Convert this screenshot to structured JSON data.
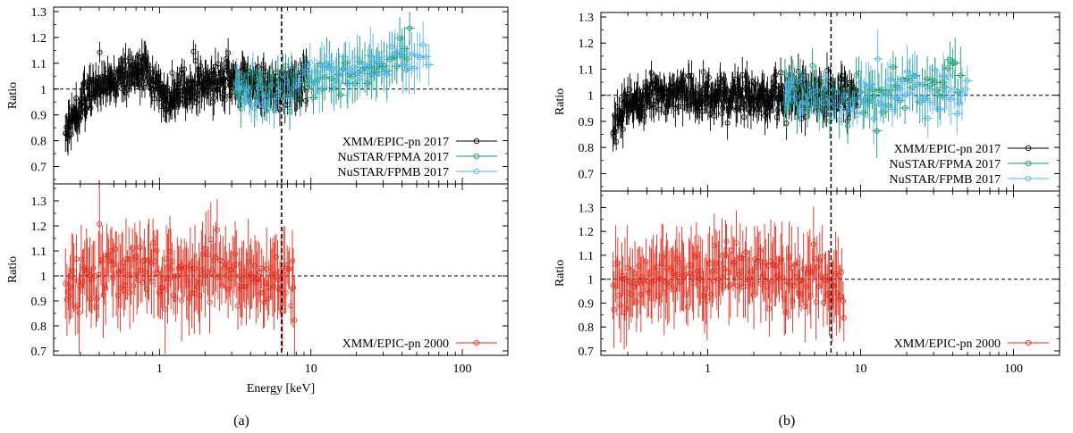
{
  "colors": {
    "xmm2017": "#000000",
    "fpma": "#119966",
    "fpmb": "#55b4e9",
    "xmm2000": "#e52a1a",
    "reference": "#000000"
  },
  "chart_data": [
    {
      "type": "scatter",
      "panel": "a",
      "caption": "(a)",
      "xscale": "log",
      "xlim": [
        0.2,
        200
      ],
      "x_tick_labels": [
        "1",
        "10",
        "100"
      ],
      "xlabel": "Energy [keV]",
      "line_energy_keV": 6.4,
      "subplots": [
        {
          "ylabel": "Ratio",
          "ylim": [
            0.65,
            1.3
          ],
          "y_tick_labels": [
            "0.7",
            "0.8",
            "0.9",
            "1",
            "1.1",
            "1.2",
            "1.3"
          ],
          "reference_y": 1.0,
          "legend_position": "bottom-right",
          "series": [
            {
              "name": "XMM/EPIC-pn 2017",
              "color_key": "xmm2017",
              "x_range": [
                0.24,
                9.5
              ],
              "n_points": 430,
              "profile": [
                [
                  0.24,
                  0.84
                ],
                [
                  0.3,
                  0.94
                ],
                [
                  0.4,
                  1.01
                ],
                [
                  0.6,
                  1.05
                ],
                [
                  0.8,
                  1.06
                ],
                [
                  1.0,
                  0.99
                ],
                [
                  1.3,
                  0.97
                ],
                [
                  2.0,
                  1.03
                ],
                [
                  3.0,
                  1.04
                ],
                [
                  5.0,
                  1.0
                ],
                [
                  7.0,
                  1.0
                ],
                [
                  9.5,
                  1.05
                ]
              ],
              "scatter": 0.035,
              "err": 0.05
            },
            {
              "name": "NuSTAR/FPMA 2017",
              "color_key": "fpma",
              "x_range": [
                3.2,
                45
              ],
              "n_points": 85,
              "profile": [
                [
                  3.2,
                  1.03
                ],
                [
                  5.0,
                  0.98
                ],
                [
                  7.0,
                  1.0
                ],
                [
                  10,
                  1.02
                ],
                [
                  15,
                  1.05
                ],
                [
                  25,
                  1.08
                ],
                [
                  45,
                  1.15
                ]
              ],
              "scatter": 0.04,
              "err": 0.05
            },
            {
              "name": "NuSTAR/FPMB 2017",
              "color_key": "fpmb",
              "x_range": [
                3.2,
                60
              ],
              "n_points": 85,
              "profile": [
                [
                  3.2,
                  1.02
                ],
                [
                  5.0,
                  0.97
                ],
                [
                  7.0,
                  1.0
                ],
                [
                  10,
                  1.04
                ],
                [
                  15,
                  1.06
                ],
                [
                  25,
                  1.09
                ],
                [
                  60,
                  1.12
                ]
              ],
              "scatter": 0.04,
              "err": 0.05
            }
          ]
        },
        {
          "ylabel": "Ratio",
          "ylim": [
            0.7,
            1.35
          ],
          "y_tick_labels": [
            "0.7",
            "0.8",
            "0.9",
            "1",
            "1.1",
            "1.2",
            "1.3"
          ],
          "reference_y": 1.0,
          "legend_position": "bottom-right",
          "series": [
            {
              "name": "XMM/EPIC-pn 2000",
              "color_key": "xmm2000",
              "x_range": [
                0.24,
                7.8
              ],
              "n_points": 190,
              "profile": [
                [
                  0.24,
                  0.96
                ],
                [
                  0.5,
                  1.02
                ],
                [
                  1.0,
                  1.0
                ],
                [
                  2.0,
                  1.02
                ],
                [
                  4.0,
                  1.0
                ],
                [
                  6.0,
                  1.02
                ],
                [
                  7.8,
                  0.96
                ]
              ],
              "scatter": 0.06,
              "err": 0.12
            }
          ]
        }
      ]
    },
    {
      "type": "scatter",
      "panel": "b",
      "caption": "(b)",
      "xscale": "log",
      "xlim": [
        0.2,
        200
      ],
      "x_tick_labels": [
        "1",
        "10",
        "100"
      ],
      "xlabel": "",
      "line_energy_keV": 6.4,
      "subplots": [
        {
          "ylabel": "Ratio",
          "ylim": [
            0.65,
            1.3
          ],
          "y_tick_labels": [
            "0.7",
            "0.8",
            "0.9",
            "1",
            "1.1",
            "1.2",
            "1.3"
          ],
          "reference_y": 1.0,
          "legend_position": "bottom-right",
          "series": [
            {
              "name": "XMM/EPIC-pn 2017",
              "color_key": "xmm2017",
              "x_range": [
                0.24,
                9.5
              ],
              "n_points": 430,
              "profile": [
                [
                  0.24,
                  0.87
                ],
                [
                  0.3,
                  0.95
                ],
                [
                  0.4,
                  1.0
                ],
                [
                  0.6,
                  1.0
                ],
                [
                  1.0,
                  1.01
                ],
                [
                  2.0,
                  1.0
                ],
                [
                  4.0,
                  1.0
                ],
                [
                  6.0,
                  1.0
                ],
                [
                  9.5,
                  1.0
                ]
              ],
              "scatter": 0.035,
              "err": 0.05
            },
            {
              "name": "NuSTAR/FPMA 2017",
              "color_key": "fpma",
              "x_range": [
                3.2,
                45
              ],
              "n_points": 85,
              "profile": [
                [
                  3.2,
                  1.0
                ],
                [
                  6.0,
                  0.99
                ],
                [
                  10,
                  0.98
                ],
                [
                  20,
                  1.02
                ],
                [
                  45,
                  1.08
                ]
              ],
              "scatter": 0.045,
              "err": 0.05
            },
            {
              "name": "NuSTAR/FPMB 2017",
              "color_key": "fpmb",
              "x_range": [
                3.2,
                50
              ],
              "n_points": 85,
              "profile": [
                [
                  3.2,
                  1.0
                ],
                [
                  6.0,
                  0.98
                ],
                [
                  10,
                  0.99
                ],
                [
                  20,
                  1.03
                ],
                [
                  50,
                  1.0
                ]
              ],
              "scatter": 0.045,
              "err": 0.05
            }
          ]
        },
        {
          "ylabel": "Ratio",
          "ylim": [
            0.7,
            1.35
          ],
          "y_tick_labels": [
            "0.7",
            "0.8",
            "0.9",
            "1",
            "1.1",
            "1.2",
            "1.3"
          ],
          "reference_y": 1.0,
          "legend_position": "bottom-right",
          "series": [
            {
              "name": "XMM/EPIC-pn 2000",
              "color_key": "xmm2000",
              "x_range": [
                0.24,
                7.8
              ],
              "n_points": 190,
              "profile": [
                [
                  0.24,
                  0.96
                ],
                [
                  0.5,
                  1.02
                ],
                [
                  1.0,
                  1.01
                ],
                [
                  2.0,
                  1.02
                ],
                [
                  4.0,
                  1.0
                ],
                [
                  6.0,
                  1.02
                ],
                [
                  7.8,
                  0.93
                ]
              ],
              "scatter": 0.06,
              "err": 0.12
            }
          ]
        }
      ]
    }
  ]
}
